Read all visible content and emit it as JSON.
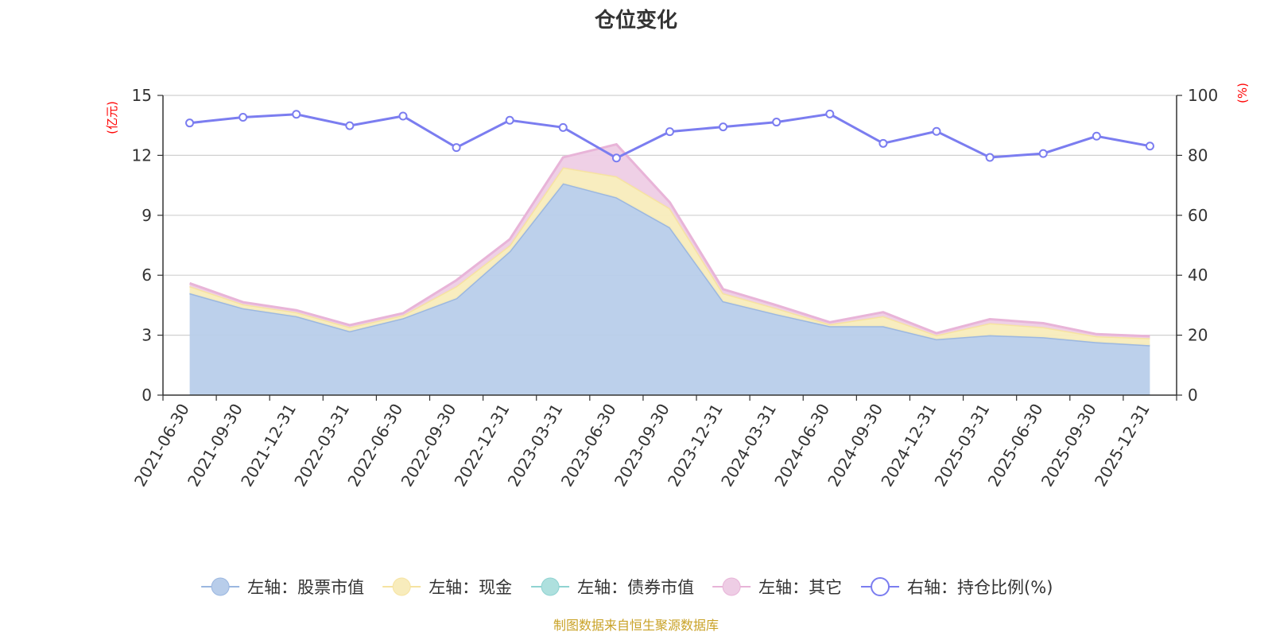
{
  "chart_data": {
    "type": "area",
    "title": "仓位变化",
    "left_axis": {
      "label": "(亿元)",
      "ylim": [
        0,
        15
      ],
      "ticks": [
        0,
        3,
        6,
        9,
        12,
        15
      ]
    },
    "right_axis": {
      "label": "(%)",
      "ylim": [
        0,
        100
      ],
      "ticks": [
        0,
        20,
        40,
        60,
        80,
        100
      ]
    },
    "categories": [
      "2021-06-30",
      "2021-09-30",
      "2021-12-31",
      "2022-03-31",
      "2022-06-30",
      "2022-09-30",
      "2022-12-31",
      "2023-03-31",
      "2023-06-30",
      "2023-09-30",
      "2023-12-31",
      "2024-03-31",
      "2024-06-30",
      "2024-09-30",
      "2024-12-31",
      "2025-03-31",
      "2025-06-30",
      "2025-09-30",
      "2025-12-31"
    ],
    "series": [
      {
        "name": "左轴：股票市值",
        "axis": "left",
        "stack": true,
        "color": "#9bb7e0",
        "fill": "#b8cdea",
        "values": [
          5.1,
          4.35,
          3.95,
          3.2,
          3.85,
          4.85,
          7.2,
          10.6,
          9.9,
          8.4,
          4.7,
          4.05,
          3.45,
          3.45,
          2.8,
          3.0,
          2.9,
          2.65,
          2.5
        ]
      },
      {
        "name": "左轴：现金",
        "axis": "left",
        "stack": true,
        "color": "#f6e3a1",
        "fill": "#f8ecbc",
        "values": [
          0.35,
          0.2,
          0.2,
          0.2,
          0.15,
          0.6,
          0.3,
          0.8,
          1.05,
          0.95,
          0.4,
          0.3,
          0.1,
          0.5,
          0.2,
          0.6,
          0.5,
          0.3,
          0.35
        ]
      },
      {
        "name": "左轴：债券市值",
        "axis": "left",
        "stack": true,
        "color": "#8fd3d1",
        "fill": "#aee0de",
        "values": [
          0,
          0,
          0,
          0,
          0,
          0,
          0,
          0,
          0,
          0,
          0,
          0,
          0,
          0,
          0,
          0,
          0,
          0,
          0
        ]
      },
      {
        "name": "左轴：其它",
        "axis": "left",
        "stack": true,
        "color": "#e8b4d8",
        "fill": "#eecde5",
        "values": [
          0.15,
          0.1,
          0.1,
          0.1,
          0.1,
          0.3,
          0.3,
          0.5,
          1.6,
          0.3,
          0.2,
          0.15,
          0.1,
          0.2,
          0.1,
          0.2,
          0.2,
          0.1,
          0.1
        ]
      },
      {
        "name": "右轴：持仓比例(%)",
        "axis": "right",
        "stack": false,
        "color": "#7b7df0",
        "values": [
          90.8,
          92.7,
          93.7,
          89.9,
          93.1,
          82.6,
          91.7,
          89.3,
          79.1,
          87.9,
          89.5,
          91.1,
          93.8,
          84.0,
          88.0,
          79.3,
          80.6,
          86.4,
          83.1
        ]
      }
    ],
    "legend_position": "bottom",
    "source": "制图数据来自恒生聚源数据库"
  }
}
